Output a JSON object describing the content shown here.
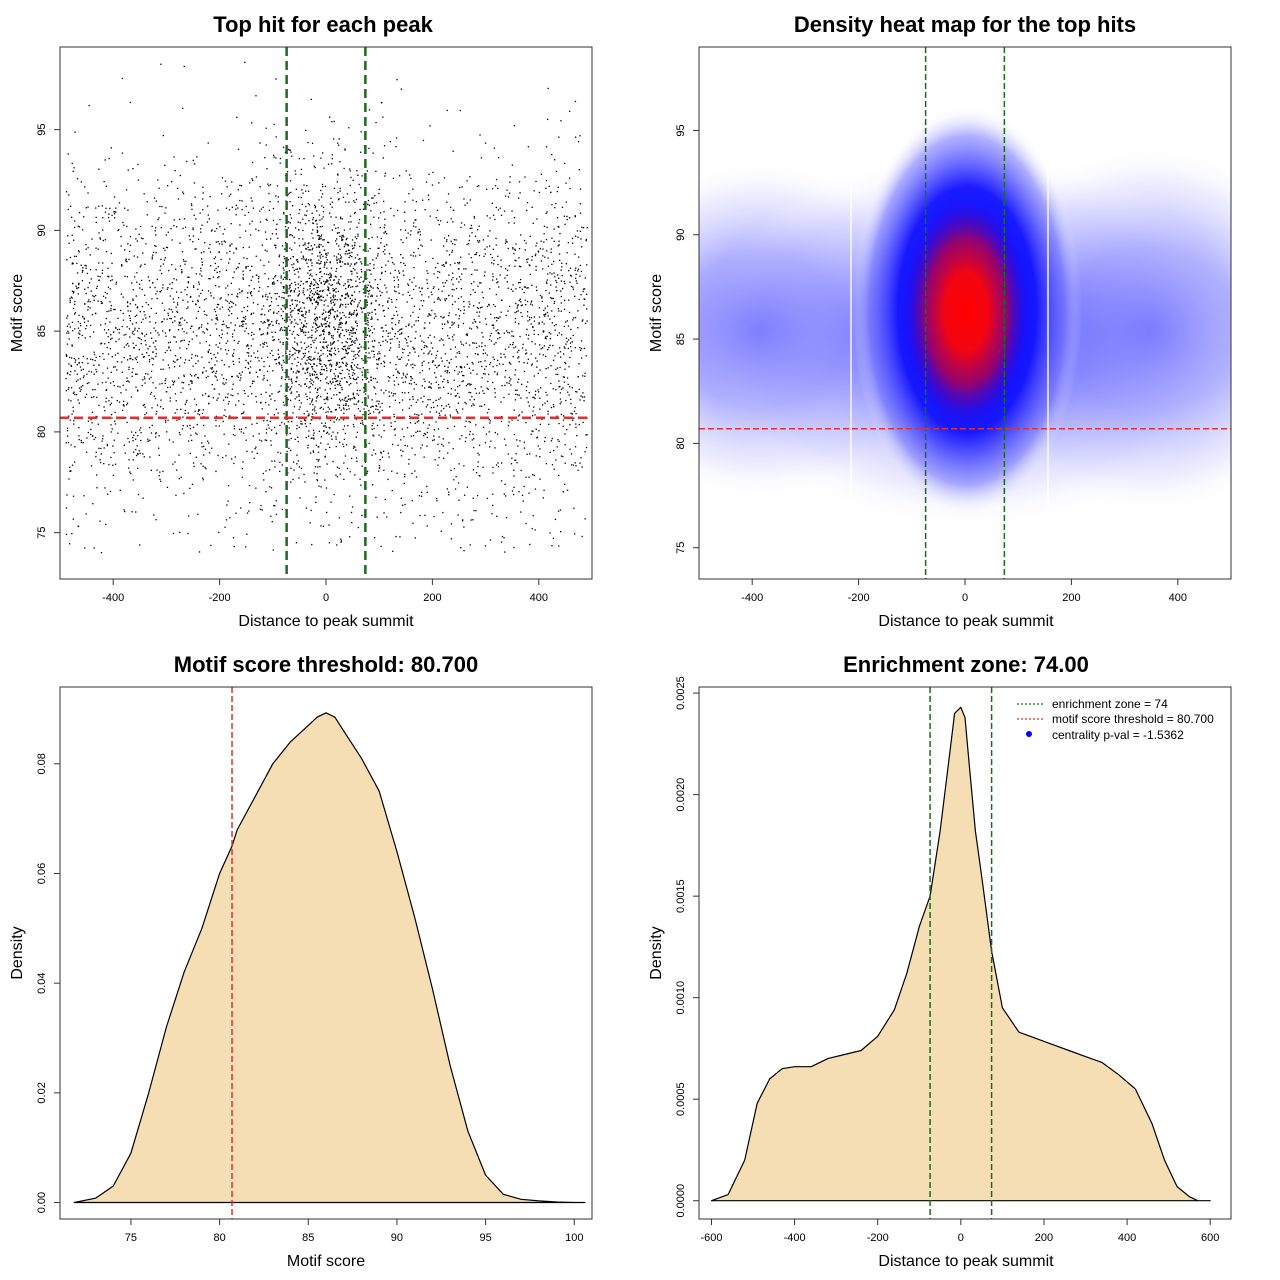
{
  "panels": {
    "scatter": {
      "title": "Top hit for each peak",
      "xlabel": "Distance to peak summit",
      "ylabel": "Motif score"
    },
    "heatmap": {
      "title": "Density heat map for the top hits",
      "xlabel": "Distance to peak summit",
      "ylabel": "Motif score"
    },
    "score_density": {
      "title": "Motif score threshold: 80.700",
      "xlabel": "Motif score",
      "ylabel": "Density"
    },
    "distance_density": {
      "title": "Enrichment zone: 74.00",
      "xlabel": "Distance to peak summit",
      "ylabel": "Density"
    }
  },
  "legend": {
    "enrichment_zone": "enrichment zone = 74",
    "motif_threshold": "motif score threshold = 80.700",
    "centrality_pval": "centrality p-val = -1.5362"
  },
  "colors": {
    "threshold_line": "#e03030",
    "zone_line": "#1a6b1a",
    "density_fill": "#f5deb3",
    "heat_low": "#ffffff",
    "heat_mid": "#0000ff",
    "heat_high": "#ff0000",
    "points": "#000000"
  },
  "chart_data": [
    {
      "id": "scatter",
      "type": "scatter",
      "title": "Top hit for each peak",
      "xlabel": "Distance to peak summit",
      "ylabel": "Motif score",
      "xlim": [
        -500,
        500
      ],
      "ylim": [
        72.7,
        99.1
      ],
      "xticks": [
        -400,
        -200,
        0,
        200,
        400
      ],
      "yticks": [
        75,
        80,
        85,
        90,
        95
      ],
      "enrichment_zone": [
        -74,
        74
      ],
      "threshold": 80.7,
      "point_count_estimate": 5000,
      "x_range": [
        -490,
        490
      ],
      "y_range": [
        74,
        99
      ],
      "center_cluster": {
        "x_spread": 60,
        "y_center": 85.5
      }
    },
    {
      "id": "heatmap",
      "type": "heatmap",
      "title": "Density heat map for the top hits",
      "xlabel": "Distance to peak summit",
      "ylabel": "Motif score",
      "xlim": [
        -500,
        500
      ],
      "ylim": [
        73.5,
        99
      ],
      "xticks": [
        -400,
        -200,
        0,
        200,
        400
      ],
      "yticks": [
        75,
        80,
        85,
        90,
        95
      ],
      "enrichment_zone": [
        -74,
        74
      ],
      "threshold": 80.7,
      "peak": {
        "x": 5,
        "y": 86.2
      }
    },
    {
      "id": "score_density",
      "type": "area",
      "title": "Motif score threshold: 80.700",
      "xlabel": "Motif score",
      "ylabel": "Density",
      "xlim": [
        71,
        101
      ],
      "ylim": [
        -0.003,
        0.094
      ],
      "xticks": [
        75,
        80,
        85,
        90,
        95,
        100
      ],
      "yticks": [
        0.0,
        0.02,
        0.04,
        0.06,
        0.08
      ],
      "ytick_labels": [
        "0.00",
        "0.02",
        "0.04",
        "0.06",
        "0.08"
      ],
      "threshold": 80.7,
      "x": [
        71.8,
        73,
        74,
        75,
        76,
        77,
        78,
        79,
        80,
        80.7,
        81,
        82,
        83,
        84,
        85,
        85.5,
        86,
        86.5,
        87,
        88,
        89,
        90,
        91,
        92,
        93,
        94,
        95,
        96,
        97,
        98,
        99,
        100,
        100.6
      ],
      "y": [
        0.0,
        0.0008,
        0.003,
        0.009,
        0.02,
        0.032,
        0.042,
        0.05,
        0.06,
        0.065,
        0.068,
        0.074,
        0.08,
        0.084,
        0.087,
        0.0885,
        0.0893,
        0.0885,
        0.086,
        0.081,
        0.075,
        0.064,
        0.052,
        0.039,
        0.025,
        0.013,
        0.005,
        0.0015,
        0.0006,
        0.0003,
        0.0001,
        0.0,
        0.0
      ]
    },
    {
      "id": "distance_density",
      "type": "area",
      "title": "Enrichment zone: 74.00",
      "xlabel": "Distance to peak summit",
      "ylabel": "Density",
      "xlim": [
        -630,
        650
      ],
      "ylim": [
        -9e-05,
        0.00253
      ],
      "xticks": [
        -600,
        -400,
        -200,
        0,
        200,
        400,
        600
      ],
      "yticks": [
        0.0,
        0.0005,
        0.001,
        0.0015,
        0.002,
        0.0025
      ],
      "ytick_labels": [
        "0.0000",
        "0.0005",
        "0.0010",
        "0.0015",
        "0.0020",
        "0.0025"
      ],
      "enrichment_zone": [
        -74,
        74
      ],
      "x": [
        -600,
        -560,
        -520,
        -490,
        -460,
        -430,
        -400,
        -360,
        -320,
        -280,
        -240,
        -200,
        -160,
        -130,
        -100,
        -74,
        -50,
        -30,
        -15,
        0,
        10,
        20,
        35,
        50,
        74,
        100,
        140,
        180,
        220,
        260,
        300,
        340,
        380,
        420,
        460,
        490,
        520,
        550,
        570,
        600
      ],
      "y": [
        0.0,
        3e-05,
        0.0002,
        0.00048,
        0.0006,
        0.00065,
        0.00066,
        0.00066,
        0.0007,
        0.00072,
        0.00074,
        0.00081,
        0.00094,
        0.00112,
        0.00135,
        0.0015,
        0.00182,
        0.00215,
        0.0024,
        0.00243,
        0.00238,
        0.00215,
        0.00182,
        0.0016,
        0.00123,
        0.00095,
        0.00083,
        0.0008,
        0.00077,
        0.00074,
        0.00071,
        0.00068,
        0.00062,
        0.00055,
        0.00038,
        0.0002,
        7e-05,
        2e-05,
        0.0,
        0.0
      ]
    }
  ]
}
